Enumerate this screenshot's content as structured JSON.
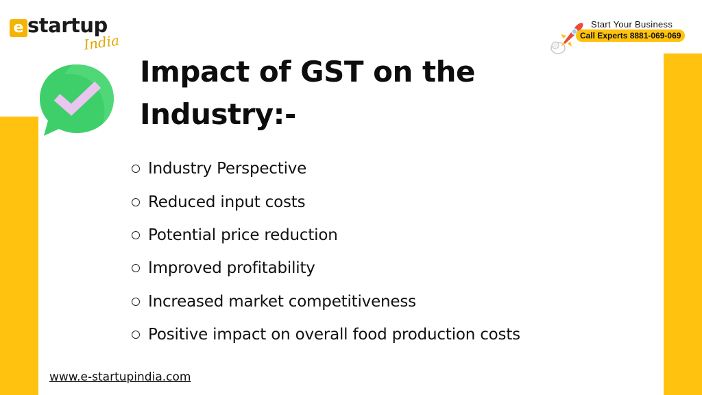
{
  "brand": {
    "logo_word": "startup",
    "logo_script": "India"
  },
  "cta": {
    "line1": "Start Your Business",
    "line2": "Call Experts 8881-069-069"
  },
  "slide": {
    "title_line1": "Impact of GST on the",
    "title_line2": "Industry:-",
    "bullets": [
      "Industry Perspective",
      "Reduced input costs",
      "Potential price reduction",
      "Improved profitability",
      "Increased market competitiveness",
      "Positive impact on overall food production costs"
    ]
  },
  "footer": {
    "website": "www.e-startupindia.com"
  },
  "colors": {
    "accent_yellow": "#ffc20e",
    "check_green": "#3fcf6a",
    "check_mark": "#e9c6ef"
  },
  "icons": {
    "check": "check-bubble-icon",
    "rocket": "rocket-icon"
  }
}
